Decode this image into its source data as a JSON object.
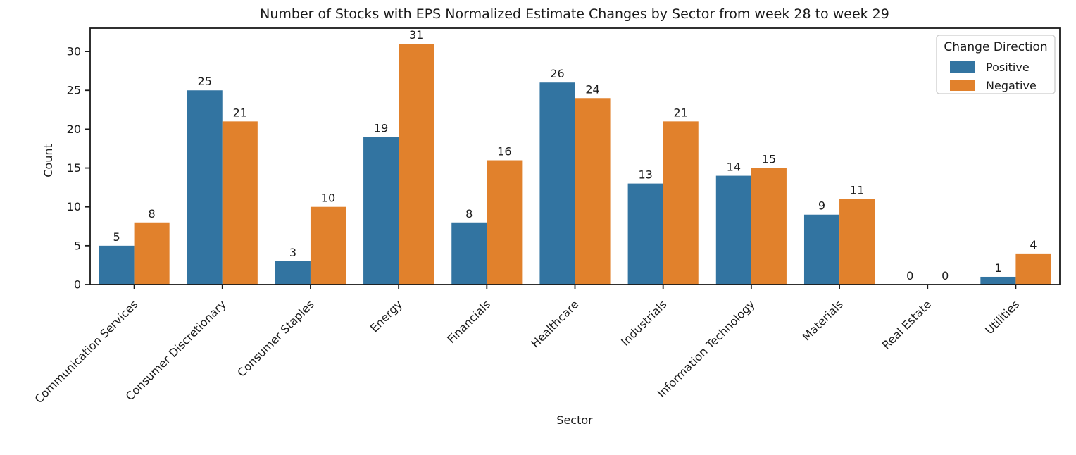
{
  "chart_data": {
    "type": "bar",
    "title": "Number of Stocks with EPS Normalized Estimate Changes by Sector from week 28 to week 29",
    "xlabel": "Sector",
    "ylabel": "Count",
    "categories": [
      "Communication Services",
      "Consumer Discretionary",
      "Consumer Staples",
      "Energy",
      "Financials",
      "Healthcare",
      "Industrials",
      "Information Technology",
      "Materials",
      "Real Estate",
      "Utilities"
    ],
    "series": [
      {
        "name": "Positive",
        "color": "#3274a1",
        "values": [
          5,
          25,
          3,
          19,
          8,
          26,
          13,
          14,
          9,
          0,
          1
        ]
      },
      {
        "name": "Negative",
        "color": "#e1812c",
        "values": [
          8,
          21,
          10,
          31,
          16,
          24,
          21,
          15,
          11,
          0,
          4
        ]
      }
    ],
    "legend_title": "Change Direction",
    "legend_position": "upper right",
    "y_ticks": [
      0,
      5,
      10,
      15,
      20,
      25,
      30
    ],
    "ylim": [
      0,
      33
    ],
    "bar_value_labels_shown": true,
    "grid": false,
    "x_tick_rotation_deg": 45,
    "colors": {
      "positive": "#3274a1",
      "negative": "#e1812c",
      "spine": "#1a1a1a",
      "text": "#1a1a1a",
      "legend_border": "#cccccc",
      "background": "#ffffff"
    }
  }
}
